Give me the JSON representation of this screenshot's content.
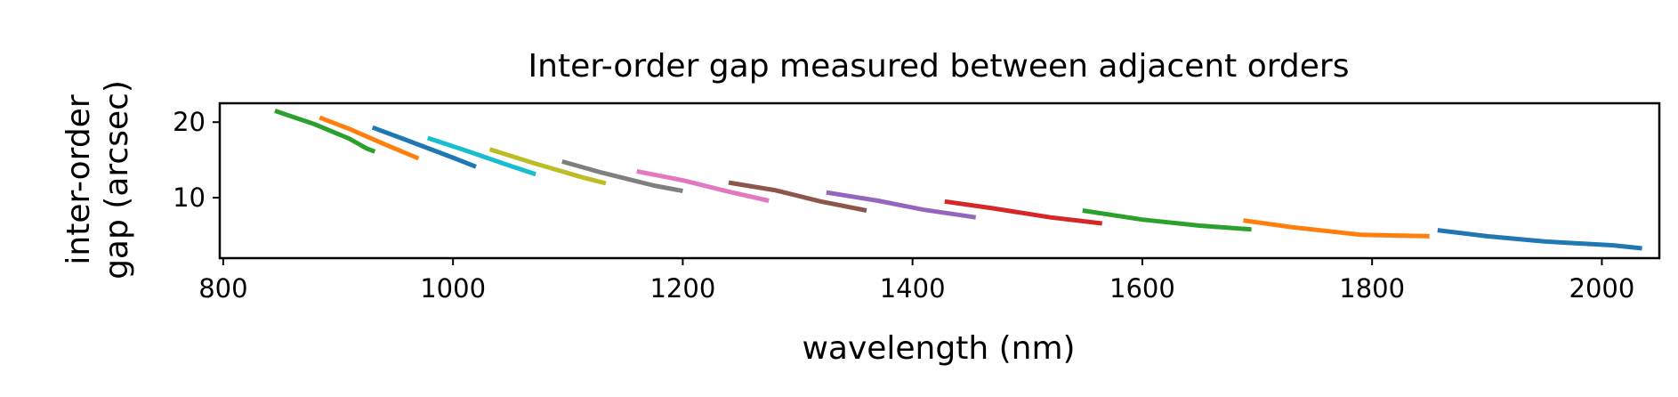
{
  "chart_data": {
    "type": "line",
    "title": "Inter-order gap measured between adjacent orders",
    "xlabel": "wavelength (nm)",
    "ylabel_lines": [
      "inter-order",
      "gap (arcsec)"
    ],
    "xlim": [
      797,
      2050
    ],
    "ylim": [
      2.0,
      22.5
    ],
    "xticks": [
      800,
      1000,
      1200,
      1400,
      1600,
      1800,
      2000
    ],
    "yticks": [
      10,
      20
    ],
    "grid": false,
    "legend": "none",
    "series": [
      {
        "color": "#2ca02c",
        "points": [
          [
            845,
            21.5
          ],
          [
            880,
            19.7
          ],
          [
            910,
            17.8
          ],
          [
            925,
            16.5
          ],
          [
            932,
            16.1
          ]
        ]
      },
      {
        "color": "#ff7f0e",
        "points": [
          [
            884,
            20.6
          ],
          [
            910,
            19.1
          ],
          [
            940,
            17.1
          ],
          [
            970,
            15.2
          ]
        ]
      },
      {
        "color": "#1f77b4",
        "points": [
          [
            930,
            19.3
          ],
          [
            960,
            17.6
          ],
          [
            1000,
            15.3
          ],
          [
            1020,
            14.1
          ]
        ]
      },
      {
        "color": "#17becf",
        "points": [
          [
            978,
            17.9
          ],
          [
            1010,
            16.3
          ],
          [
            1050,
            14.2
          ],
          [
            1072,
            13.1
          ]
        ]
      },
      {
        "color": "#bcbd22",
        "points": [
          [
            1032,
            16.4
          ],
          [
            1070,
            14.6
          ],
          [
            1110,
            12.8
          ],
          [
            1133,
            11.9
          ]
        ]
      },
      {
        "color": "#7f7f7f",
        "points": [
          [
            1095,
            14.8
          ],
          [
            1130,
            13.3
          ],
          [
            1175,
            11.6
          ],
          [
            1200,
            10.9
          ]
        ]
      },
      {
        "color": "#e377c2",
        "points": [
          [
            1160,
            13.5
          ],
          [
            1200,
            12.3
          ],
          [
            1240,
            10.8
          ],
          [
            1275,
            9.6
          ]
        ]
      },
      {
        "color": "#8c564b",
        "points": [
          [
            1240,
            12.0
          ],
          [
            1280,
            11.0
          ],
          [
            1320,
            9.5
          ],
          [
            1360,
            8.3
          ]
        ]
      },
      {
        "color": "#9467bd",
        "points": [
          [
            1325,
            10.7
          ],
          [
            1370,
            9.6
          ],
          [
            1410,
            8.4
          ],
          [
            1455,
            7.4
          ]
        ]
      },
      {
        "color": "#d62728",
        "points": [
          [
            1428,
            9.5
          ],
          [
            1470,
            8.6
          ],
          [
            1520,
            7.4
          ],
          [
            1565,
            6.6
          ]
        ]
      },
      {
        "color": "#2ca02c",
        "points": [
          [
            1548,
            8.3
          ],
          [
            1600,
            7.1
          ],
          [
            1650,
            6.3
          ],
          [
            1695,
            5.8
          ]
        ]
      },
      {
        "color": "#ff7f0e",
        "points": [
          [
            1688,
            7.0
          ],
          [
            1730,
            6.1
          ],
          [
            1790,
            5.1
          ],
          [
            1850,
            4.9
          ]
        ]
      },
      {
        "color": "#1f77b4",
        "points": [
          [
            1857,
            5.7
          ],
          [
            1900,
            4.9
          ],
          [
            1950,
            4.2
          ],
          [
            2010,
            3.7
          ],
          [
            2035,
            3.3
          ]
        ]
      }
    ]
  }
}
